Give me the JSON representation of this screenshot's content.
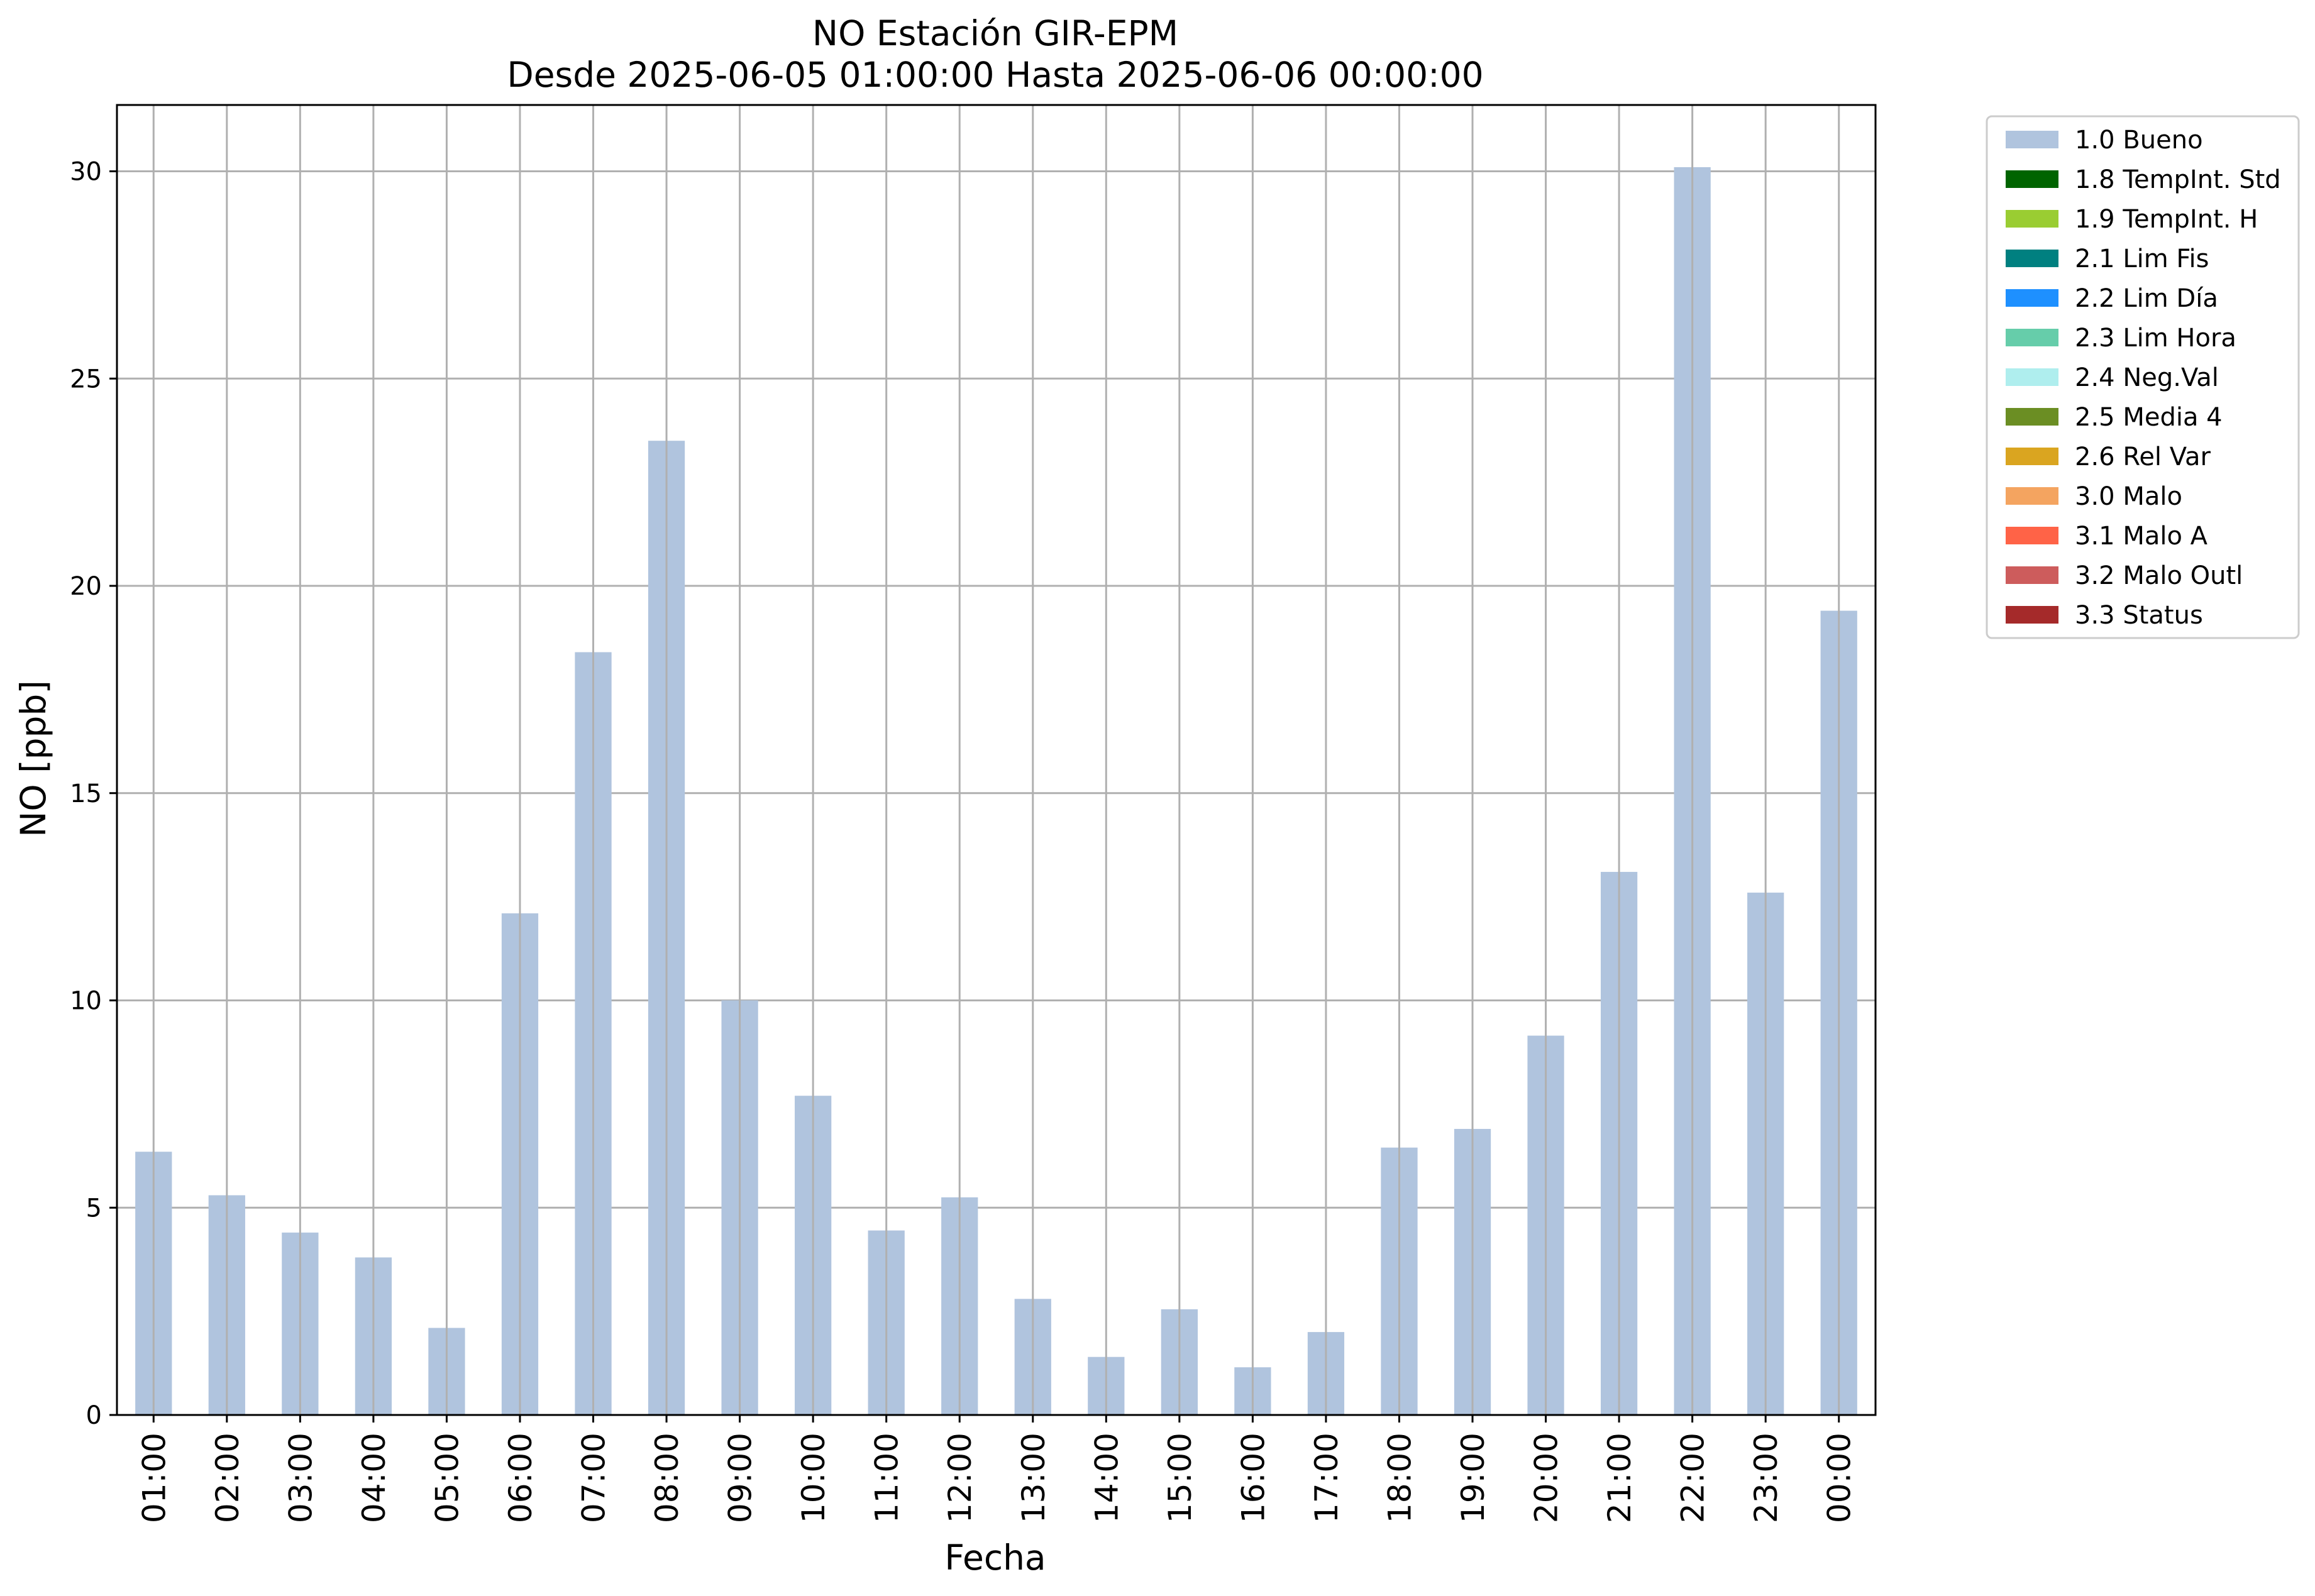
{
  "chart_data": {
    "type": "bar",
    "title": "NO Estación GIR-EPM",
    "subtitle": "Desde 2025-06-05 01:00:00 Hasta 2025-06-06 00:00:00",
    "xlabel": "Fecha",
    "ylabel": "NO [ppb]",
    "ylim": [
      0,
      31.6
    ],
    "yticks": [
      0,
      5,
      10,
      15,
      20,
      25,
      30
    ],
    "grid": true,
    "legend_position": "outside right, top",
    "categories": [
      "01:00",
      "02:00",
      "03:00",
      "04:00",
      "05:00",
      "06:00",
      "07:00",
      "08:00",
      "09:00",
      "10:00",
      "11:00",
      "12:00",
      "13:00",
      "14:00",
      "15:00",
      "16:00",
      "17:00",
      "18:00",
      "19:00",
      "20:00",
      "21:00",
      "22:00",
      "23:00",
      "00:00"
    ],
    "series": [
      {
        "name": "1.0 Bueno",
        "color": "#b0c4de",
        "values": [
          6.35,
          5.3,
          4.4,
          3.8,
          2.1,
          12.1,
          18.4,
          23.5,
          10.0,
          7.7,
          4.45,
          5.25,
          2.8,
          1.4,
          2.55,
          1.15,
          2.0,
          6.45,
          6.9,
          9.15,
          13.1,
          30.1,
          12.6,
          19.4
        ]
      }
    ],
    "legend": [
      {
        "label": "1.0 Bueno",
        "color": "#b0c4de"
      },
      {
        "label": "1.8 TempInt. Std",
        "color": "#006400"
      },
      {
        "label": "1.9 TempInt. H",
        "color": "#9acd32"
      },
      {
        "label": "2.1 Lim Fis",
        "color": "#008080"
      },
      {
        "label": "2.2 Lim Día",
        "color": "#1e90ff"
      },
      {
        "label": "2.3 Lim Hora",
        "color": "#66cdaa"
      },
      {
        "label": "2.4 Neg.Val",
        "color": "#afeeee"
      },
      {
        "label": "2.5 Media 4",
        "color": "#6b8e23"
      },
      {
        "label": "2.6 Rel Var",
        "color": "#daa520"
      },
      {
        "label": "3.0 Malo",
        "color": "#f4a460"
      },
      {
        "label": "3.1 Malo A",
        "color": "#ff6347"
      },
      {
        "label": "3.2 Malo Outl",
        "color": "#cd5c5c"
      },
      {
        "label": "3.3 Status",
        "color": "#a52a2a"
      }
    ]
  }
}
